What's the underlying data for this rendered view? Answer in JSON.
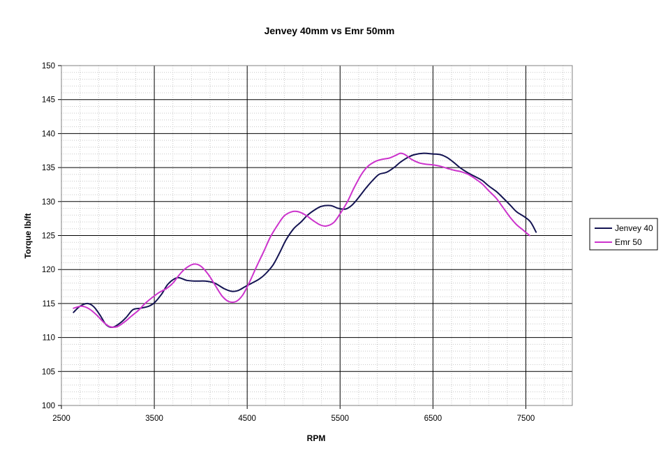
{
  "chart_data": {
    "type": "line",
    "title": "Jenvey 40mm vs Emr 50mm",
    "xlabel": "RPM",
    "ylabel": "Torque lb/ft",
    "xlim": [
      2500,
      8000
    ],
    "ylim": [
      100,
      150
    ],
    "x_major_ticks": [
      2500,
      3500,
      4500,
      5500,
      6500,
      7500
    ],
    "y_major_ticks": [
      100,
      105,
      110,
      115,
      120,
      125,
      130,
      135,
      140,
      145,
      150
    ],
    "grid": true,
    "legend_position": "right",
    "series": [
      {
        "name": "Jenvey 40",
        "color": "#141452",
        "points": [
          [
            2630,
            113.7
          ],
          [
            2700,
            114.6
          ],
          [
            2780,
            115.0
          ],
          [
            2850,
            114.5
          ],
          [
            2920,
            113.2
          ],
          [
            2980,
            111.9
          ],
          [
            3050,
            111.5
          ],
          [
            3130,
            112.1
          ],
          [
            3200,
            113.0
          ],
          [
            3270,
            114.1
          ],
          [
            3350,
            114.3
          ],
          [
            3440,
            114.6
          ],
          [
            3500,
            115.1
          ],
          [
            3580,
            116.4
          ],
          [
            3650,
            117.9
          ],
          [
            3750,
            118.8
          ],
          [
            3850,
            118.4
          ],
          [
            3950,
            118.3
          ],
          [
            4050,
            118.3
          ],
          [
            4150,
            118.0
          ],
          [
            4250,
            117.2
          ],
          [
            4330,
            116.8
          ],
          [
            4400,
            116.9
          ],
          [
            4480,
            117.5
          ],
          [
            4550,
            118.0
          ],
          [
            4630,
            118.6
          ],
          [
            4700,
            119.4
          ],
          [
            4780,
            120.7
          ],
          [
            4850,
            122.5
          ],
          [
            4920,
            124.4
          ],
          [
            5000,
            126.0
          ],
          [
            5080,
            127.0
          ],
          [
            5150,
            128.0
          ],
          [
            5230,
            128.8
          ],
          [
            5300,
            129.3
          ],
          [
            5400,
            129.4
          ],
          [
            5480,
            129.0
          ],
          [
            5560,
            128.9
          ],
          [
            5630,
            129.5
          ],
          [
            5700,
            130.6
          ],
          [
            5780,
            132.0
          ],
          [
            5850,
            133.1
          ],
          [
            5920,
            134.0
          ],
          [
            6000,
            134.3
          ],
          [
            6080,
            135.0
          ],
          [
            6150,
            135.8
          ],
          [
            6230,
            136.5
          ],
          [
            6300,
            136.9
          ],
          [
            6400,
            137.1
          ],
          [
            6500,
            137.0
          ],
          [
            6580,
            136.9
          ],
          [
            6650,
            136.5
          ],
          [
            6720,
            135.8
          ],
          [
            6800,
            134.9
          ],
          [
            6880,
            134.2
          ],
          [
            6950,
            133.7
          ],
          [
            7030,
            133.1
          ],
          [
            7100,
            132.3
          ],
          [
            7180,
            131.5
          ],
          [
            7250,
            130.6
          ],
          [
            7330,
            129.5
          ],
          [
            7400,
            128.5
          ],
          [
            7480,
            127.8
          ],
          [
            7550,
            127.0
          ],
          [
            7610,
            125.5
          ]
        ]
      },
      {
        "name": "Emr 50",
        "color": "#cc33cc",
        "points": [
          [
            2630,
            114.3
          ],
          [
            2720,
            114.6
          ],
          [
            2800,
            114.2
          ],
          [
            2880,
            113.3
          ],
          [
            2950,
            112.3
          ],
          [
            3020,
            111.6
          ],
          [
            3100,
            111.6
          ],
          [
            3180,
            112.3
          ],
          [
            3250,
            113.1
          ],
          [
            3330,
            114.0
          ],
          [
            3400,
            115.0
          ],
          [
            3480,
            115.9
          ],
          [
            3550,
            116.6
          ],
          [
            3630,
            117.2
          ],
          [
            3700,
            118.0
          ],
          [
            3780,
            119.4
          ],
          [
            3850,
            120.3
          ],
          [
            3930,
            120.8
          ],
          [
            4000,
            120.5
          ],
          [
            4080,
            119.3
          ],
          [
            4150,
            117.8
          ],
          [
            4230,
            116.1
          ],
          [
            4300,
            115.3
          ],
          [
            4380,
            115.3
          ],
          [
            4450,
            116.2
          ],
          [
            4520,
            118.0
          ],
          [
            4600,
            120.4
          ],
          [
            4680,
            122.7
          ],
          [
            4750,
            124.8
          ],
          [
            4830,
            126.6
          ],
          [
            4900,
            127.9
          ],
          [
            4980,
            128.5
          ],
          [
            5050,
            128.5
          ],
          [
            5130,
            128.0
          ],
          [
            5200,
            127.3
          ],
          [
            5280,
            126.6
          ],
          [
            5350,
            126.4
          ],
          [
            5430,
            126.9
          ],
          [
            5500,
            128.2
          ],
          [
            5580,
            130.0
          ],
          [
            5650,
            132.0
          ],
          [
            5730,
            134.0
          ],
          [
            5800,
            135.2
          ],
          [
            5880,
            135.9
          ],
          [
            5950,
            136.2
          ],
          [
            6030,
            136.4
          ],
          [
            6100,
            136.8
          ],
          [
            6150,
            137.1
          ],
          [
            6200,
            136.9
          ],
          [
            6270,
            136.2
          ],
          [
            6350,
            135.7
          ],
          [
            6420,
            135.5
          ],
          [
            6500,
            135.4
          ],
          [
            6580,
            135.2
          ],
          [
            6650,
            134.9
          ],
          [
            6730,
            134.6
          ],
          [
            6800,
            134.4
          ],
          [
            6880,
            134.0
          ],
          [
            6950,
            133.4
          ],
          [
            7030,
            132.6
          ],
          [
            7100,
            131.6
          ],
          [
            7180,
            130.5
          ],
          [
            7250,
            129.2
          ],
          [
            7330,
            127.7
          ],
          [
            7400,
            126.6
          ],
          [
            7480,
            125.7
          ],
          [
            7540,
            125.0
          ]
        ]
      }
    ]
  }
}
